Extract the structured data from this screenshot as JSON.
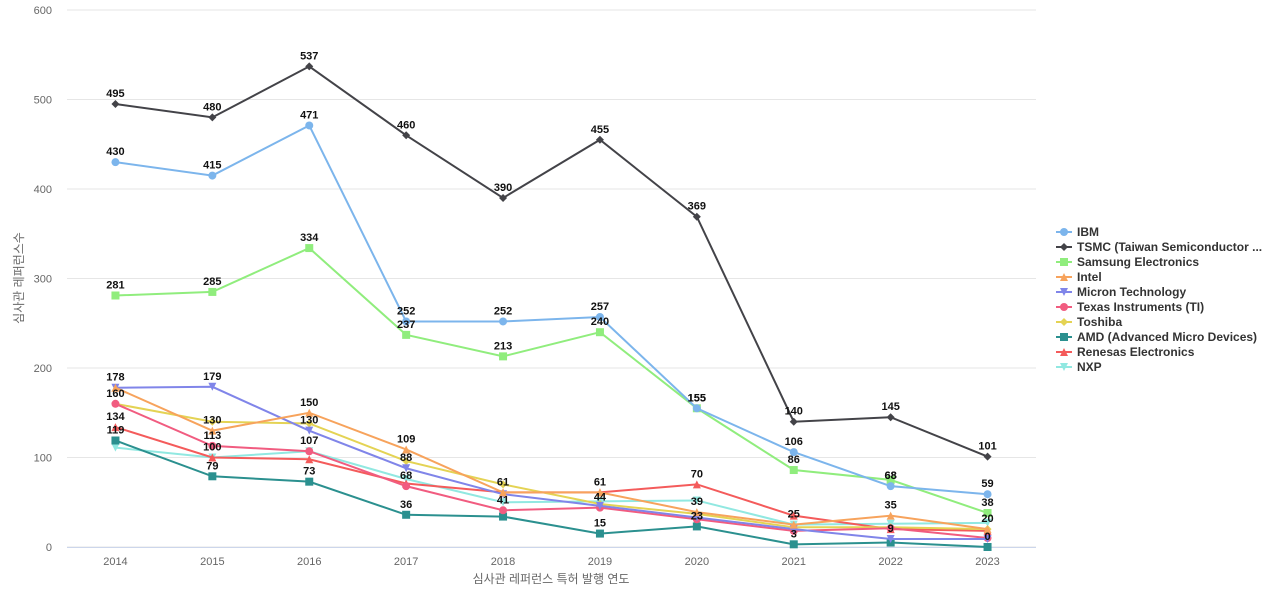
{
  "chart_data": {
    "type": "line",
    "title": "",
    "xlabel": "심사관 레퍼런스 특허 발행 연도",
    "ylabel": "심사관 레퍼런스수",
    "x": [
      "2014",
      "2015",
      "2016",
      "2017",
      "2018",
      "2019",
      "2020",
      "2021",
      "2022",
      "2023"
    ],
    "ylim": [
      0,
      600
    ],
    "yticks": [
      0,
      100,
      200,
      300,
      400,
      500,
      600
    ],
    "grid": true,
    "legend_position": "right",
    "series": [
      {
        "name": "IBM",
        "color": "#7cb5ec",
        "marker": "circle",
        "values": [
          430,
          415,
          471,
          252,
          252,
          257,
          155,
          106,
          68,
          59
        ],
        "labels": true
      },
      {
        "name": "TSMC (Taiwan Semiconductor ...",
        "color": "#434348",
        "marker": "diamond",
        "values": [
          495,
          480,
          537,
          460,
          390,
          455,
          369,
          140,
          145,
          101
        ],
        "labels": true
      },
      {
        "name": "Samsung Electronics",
        "color": "#90ed7d",
        "marker": "square",
        "values": [
          281,
          285,
          334,
          237,
          213,
          240,
          155,
          86,
          75,
          38
        ],
        "labels": true
      },
      {
        "name": "Intel",
        "color": "#f7a35c",
        "marker": "triangle",
        "values": [
          178,
          130,
          150,
          109,
          61,
          61,
          39,
          25,
          35,
          20
        ],
        "labels": true
      },
      {
        "name": "Micron Technology",
        "color": "#8085e9",
        "marker": "triangle-down",
        "values": [
          178,
          179,
          130,
          88,
          59,
          46,
          33,
          20,
          9,
          9
        ],
        "labels": false
      },
      {
        "name": "Texas Instruments (TI)",
        "color": "#f15c80",
        "marker": "circle",
        "values": [
          160,
          113,
          107,
          68,
          41,
          44,
          31,
          18,
          21,
          10
        ],
        "labels": true
      },
      {
        "name": "Toshiba",
        "color": "#e4d354",
        "marker": "diamond",
        "values": [
          160,
          140,
          138,
          96,
          70,
          48,
          37,
          22,
          22,
          20
        ],
        "labels": false
      },
      {
        "name": "AMD (Advanced Micro Devices)",
        "color": "#2b908f",
        "marker": "square",
        "values": [
          119,
          79,
          73,
          36,
          34,
          15,
          23,
          3,
          5,
          0
        ],
        "labels": true
      },
      {
        "name": "Renesas Electronics",
        "color": "#f45b5b",
        "marker": "triangle",
        "values": [
          134,
          100,
          98,
          71,
          61,
          61,
          70,
          35,
          20,
          18
        ],
        "labels": true
      },
      {
        "name": "NXP",
        "color": "#91e8e1",
        "marker": "triangle-down",
        "values": [
          111,
          100,
          107,
          76,
          50,
          51,
          52,
          25,
          26,
          27
        ],
        "labels": false
      }
    ],
    "data_labels": [
      {
        "x": "2014",
        "value": "495"
      },
      {
        "x": "2015",
        "value": "480"
      },
      {
        "x": "2016",
        "value": "537"
      },
      {
        "x": "2017",
        "value": "460"
      },
      {
        "x": "2018",
        "value": "390"
      },
      {
        "x": "2019",
        "value": "455"
      },
      {
        "x": "2020",
        "value": "369"
      },
      {
        "x": "2021",
        "value": "140"
      },
      {
        "x": "2022",
        "value": "145"
      },
      {
        "x": "2023",
        "value": "101"
      },
      {
        "x": "2014",
        "value": "430"
      },
      {
        "x": "2015",
        "value": "415"
      },
      {
        "x": "2016",
        "value": "471"
      },
      {
        "x": "2017",
        "value": "252"
      },
      {
        "x": "2018",
        "value": "252"
      },
      {
        "x": "2019",
        "value": "257"
      },
      {
        "x": "2020",
        "value": "155"
      },
      {
        "x": "2021",
        "value": "106"
      },
      {
        "x": "2022",
        "value": "68"
      },
      {
        "x": "2023",
        "value": "59"
      },
      {
        "x": "2014",
        "value": "281"
      },
      {
        "x": "2015",
        "value": "285"
      },
      {
        "x": "2016",
        "value": "334"
      },
      {
        "x": "2017",
        "value": "237"
      },
      {
        "x": "2018",
        "value": "213"
      },
      {
        "x": "2019",
        "value": "240"
      },
      {
        "x": "2021",
        "value": "86"
      },
      {
        "x": "2023",
        "value": "38"
      },
      {
        "x": "2014",
        "value": "178"
      },
      {
        "x": "2015",
        "value": "179"
      },
      {
        "x": "2016",
        "value": "150"
      },
      {
        "x": "2017",
        "value": "109"
      },
      {
        "x": "2018",
        "value": "61"
      },
      {
        "x": "2019",
        "value": "61"
      },
      {
        "x": "2020",
        "value": "70"
      },
      {
        "x": "2021",
        "value": "25"
      },
      {
        "x": "2022",
        "value": "35"
      },
      {
        "x": "2023",
        "value": "20"
      },
      {
        "x": "2014",
        "value": "160"
      },
      {
        "x": "2015",
        "value": "130"
      },
      {
        "x": "2016",
        "value": "130"
      },
      {
        "x": "2017",
        "value": "88"
      },
      {
        "x": "2018",
        "value": "41"
      },
      {
        "x": "2019",
        "value": "44"
      },
      {
        "x": "2020",
        "value": "39"
      },
      {
        "x": "2021",
        "value": "3"
      },
      {
        "x": "2022",
        "value": "9"
      },
      {
        "x": "2023",
        "value": "0"
      },
      {
        "x": "2014",
        "value": "134"
      },
      {
        "x": "2015",
        "value": "113"
      },
      {
        "x": "2016",
        "value": "107"
      },
      {
        "x": "2017",
        "value": "68"
      },
      {
        "x": "2019",
        "value": "15"
      },
      {
        "x": "2020",
        "value": "23"
      },
      {
        "x": "2014",
        "value": "119"
      },
      {
        "x": "2015",
        "value": "100"
      },
      {
        "x": "2016",
        "value": "73"
      },
      {
        "x": "2017",
        "value": "36"
      },
      {
        "x": "2015",
        "value": "79"
      },
      {
        "x": "2020",
        "value": "155"
      },
      {
        "x": "2022",
        "value": "68"
      }
    ]
  }
}
